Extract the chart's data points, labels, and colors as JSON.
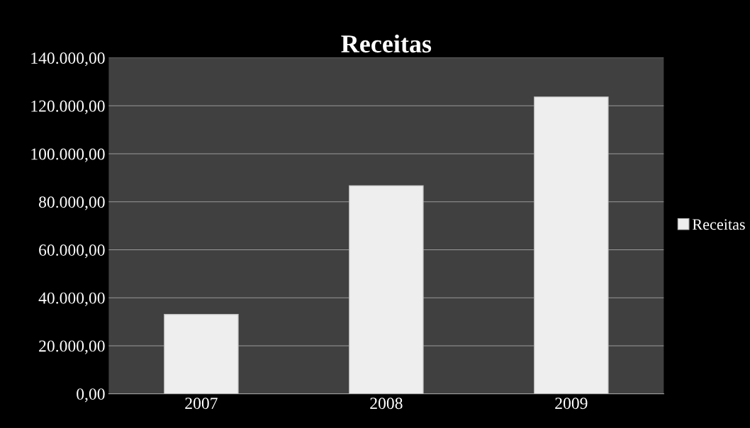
{
  "chart_data": {
    "type": "bar",
    "title": "Receitas",
    "categories": [
      "2007",
      "2008",
      "2009"
    ],
    "series": [
      {
        "name": "Receitas",
        "color": "#eeeeee",
        "values": [
          33100,
          86700,
          123700
        ]
      }
    ],
    "ylim": [
      0,
      140000
    ],
    "yticks": [
      {
        "value": 0,
        "label": "0,00"
      },
      {
        "value": 20000,
        "label": "20.000,00"
      },
      {
        "value": 40000,
        "label": "40.000,00"
      },
      {
        "value": 60000,
        "label": "60.000,00"
      },
      {
        "value": 80000,
        "label": "80.000,00"
      },
      {
        "value": 100000,
        "label": "100.000,00"
      },
      {
        "value": 120000,
        "label": "120.000,00"
      },
      {
        "value": 140000,
        "label": "140.000,00"
      }
    ],
    "grid": "y",
    "legend": "right"
  }
}
